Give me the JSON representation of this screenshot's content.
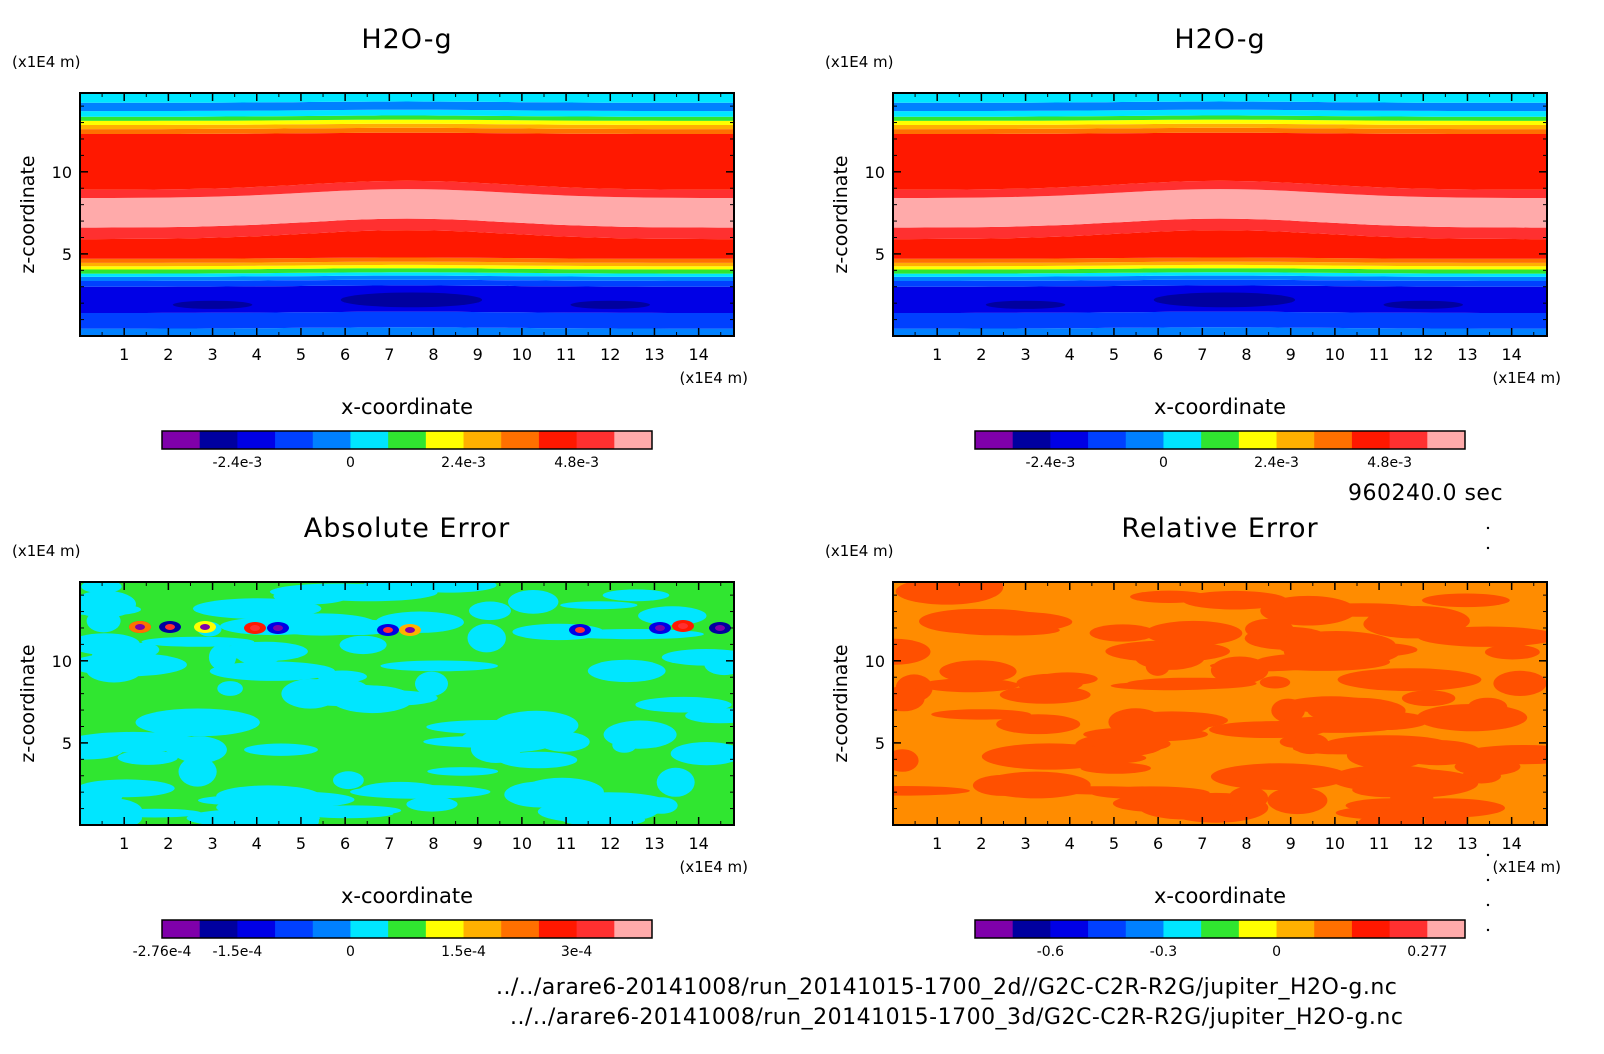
{
  "chart_data": [
    {
      "type": "heatmap",
      "title": "H2O-g",
      "xlabel": "x-coordinate",
      "ylabel": "z-coordinate",
      "x_unit": "(x1E4 m)",
      "y_unit": "(x1E4 m)",
      "xlim": [
        0,
        14.8
      ],
      "ylim": [
        0,
        14.8
      ],
      "x_ticks": [
        "1",
        "2",
        "3",
        "4",
        "5",
        "6",
        "7",
        "8",
        "9",
        "10",
        "11",
        "12",
        "13",
        "14"
      ],
      "y_ticks": [
        "5",
        "10"
      ],
      "colorbar": {
        "colors": [
          "#7f00aa",
          "#00009f",
          "#0000e6",
          "#0040ff",
          "#0080ff",
          "#00e6ff",
          "#30e630",
          "#ffff00",
          "#ffb000",
          "#ff7000",
          "#ff1800",
          "#ff3030",
          "#ffaaaa"
        ],
        "tick_labels": [
          "-2.4e-3",
          "0",
          "2.4e-3",
          "4.8e-3"
        ],
        "tick_band_index": [
          2,
          5,
          8,
          11
        ]
      },
      "pattern": "mixing_ratio",
      "bands_description": [
        {
          "z_from": 0,
          "z_to": 0.5,
          "level": "#0080ff"
        },
        {
          "z_from": 0.5,
          "z_to": 3.5,
          "level": "#0000e6"
        },
        {
          "z_from": 3.5,
          "z_to": 4.5,
          "level": "#30e630"
        },
        {
          "z_from": 4.5,
          "z_to": 7.5,
          "level": "#ff1800"
        },
        {
          "z_from": 7.5,
          "z_to": 12.5,
          "level": "#ff1800"
        },
        {
          "z_from": 12.5,
          "z_to": 14.8,
          "level": "#00e6ff"
        }
      ]
    },
    {
      "type": "heatmap",
      "title": "H2O-g",
      "xlabel": "x-coordinate",
      "ylabel": "z-coordinate",
      "x_unit": "(x1E4 m)",
      "y_unit": "(x1E4 m)",
      "xlim": [
        0,
        14.8
      ],
      "ylim": [
        0,
        14.8
      ],
      "x_ticks": [
        "1",
        "2",
        "3",
        "4",
        "5",
        "6",
        "7",
        "8",
        "9",
        "10",
        "11",
        "12",
        "13",
        "14"
      ],
      "y_ticks": [
        "5",
        "10"
      ],
      "colorbar": {
        "colors": [
          "#7f00aa",
          "#00009f",
          "#0000e6",
          "#0040ff",
          "#0080ff",
          "#00e6ff",
          "#30e630",
          "#ffff00",
          "#ffb000",
          "#ff7000",
          "#ff1800",
          "#ff3030",
          "#ffaaaa"
        ],
        "tick_labels": [
          "-2.4e-3",
          "0",
          "2.4e-3",
          "4.8e-3"
        ],
        "tick_band_index": [
          2,
          5,
          8,
          11
        ]
      },
      "pattern": "mixing_ratio"
    },
    {
      "type": "heatmap",
      "title": "Absolute Error",
      "xlabel": "x-coordinate",
      "ylabel": "z-coordinate",
      "x_unit": "(x1E4 m)",
      "y_unit": "(x1E4 m)",
      "xlim": [
        0,
        14.8
      ],
      "ylim": [
        0,
        14.8
      ],
      "x_ticks": [
        "1",
        "2",
        "3",
        "4",
        "5",
        "6",
        "7",
        "8",
        "9",
        "10",
        "11",
        "12",
        "13",
        "14"
      ],
      "y_ticks": [
        "5",
        "10"
      ],
      "colorbar": {
        "colors": [
          "#7f00aa",
          "#00009f",
          "#0000e6",
          "#0040ff",
          "#0080ff",
          "#00e6ff",
          "#30e630",
          "#ffff00",
          "#ffb000",
          "#ff7000",
          "#ff1800",
          "#ff3030",
          "#ffaaaa"
        ],
        "tick_labels": [
          "-2.76e-4",
          "-1.5e-4",
          "0",
          "1.5e-4",
          "3e-4"
        ],
        "tick_band_index": [
          0,
          2,
          5,
          8,
          11
        ]
      },
      "pattern": "abs_error",
      "base_colors": [
        "#30e630",
        "#00e6ff"
      ]
    },
    {
      "type": "heatmap",
      "title": "Relative Error",
      "xlabel": "x-coordinate",
      "ylabel": "z-coordinate",
      "x_unit": "(x1E4 m)",
      "y_unit": "(x1E4 m)",
      "xlim": [
        0,
        14.8
      ],
      "ylim": [
        0,
        14.8
      ],
      "x_ticks": [
        "1",
        "2",
        "3",
        "4",
        "5",
        "6",
        "7",
        "8",
        "9",
        "10",
        "11",
        "12",
        "13",
        "14"
      ],
      "y_ticks": [
        "5",
        "10"
      ],
      "colorbar": {
        "colors": [
          "#7f00aa",
          "#00009f",
          "#0000e6",
          "#0040ff",
          "#0080ff",
          "#00e6ff",
          "#30e630",
          "#ffff00",
          "#ffb000",
          "#ff7000",
          "#ff1800",
          "#ff3030",
          "#ffaaaa"
        ],
        "tick_labels": [
          "-0.6",
          "-0.3",
          "0",
          "0.277"
        ],
        "tick_band_index": [
          2,
          5,
          8,
          12
        ]
      },
      "pattern": "rel_error",
      "base_colors": [
        "#ff8c00",
        "#ff5000"
      ]
    }
  ],
  "time_label": "960240.0 sec",
  "file_paths": [
    "../../arare6-20141008/run_20141015-1700_2d//G2C-C2R-R2G/jupiter_H2O-g.nc",
    "../../arare6-20141008/run_20141015-1700_3d/G2C-C2R-R2G/jupiter_H2O-g.nc"
  ]
}
